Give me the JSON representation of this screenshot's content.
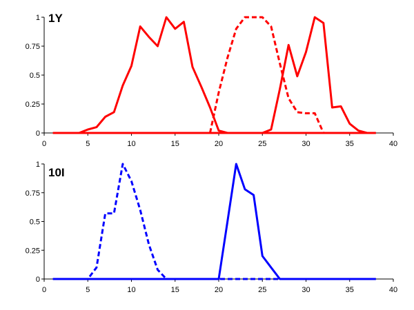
{
  "chart_data": [
    {
      "type": "line",
      "title": "1Y",
      "xlim": [
        0,
        40
      ],
      "ylim": [
        0,
        1
      ],
      "x_ticks": [
        0,
        5,
        10,
        15,
        20,
        25,
        30,
        35,
        40
      ],
      "y_ticks": [
        "0",
        "0.25",
        "0.5",
        "0.75",
        "1"
      ],
      "y_tick_values": [
        0,
        0.25,
        0.5,
        0.75,
        1
      ],
      "grid": false,
      "legend": "none",
      "color": "#ff0000",
      "series": [
        {
          "style": "solid",
          "x": [
            1,
            4,
            5,
            6,
            7,
            8,
            9,
            10,
            11,
            12,
            13,
            14,
            15,
            16,
            17,
            18,
            19,
            20,
            21,
            22,
            23,
            24,
            25,
            26,
            27,
            28,
            29,
            30,
            31,
            32,
            33,
            34,
            35,
            36,
            37,
            38
          ],
          "y": [
            0,
            0,
            0.03,
            0.05,
            0.14,
            0.18,
            0.41,
            0.58,
            0.92,
            0.83,
            0.75,
            1.0,
            0.9,
            0.96,
            0.57,
            0.4,
            0.22,
            0.02,
            0,
            0,
            0,
            0,
            0,
            0.03,
            0.38,
            0.76,
            0.49,
            0.7,
            1.0,
            0.95,
            0.22,
            0.23,
            0.08,
            0.02,
            0,
            0
          ]
        },
        {
          "style": "solid",
          "x": [
            1,
            38
          ],
          "y": [
            0,
            0
          ]
        },
        {
          "style": "dashed",
          "x": [
            19,
            20,
            21,
            22,
            23,
            24,
            25,
            26,
            27,
            28,
            29,
            30,
            31,
            32
          ],
          "y": [
            0,
            0.35,
            0.65,
            0.9,
            1.0,
            1.0,
            1.0,
            0.92,
            0.6,
            0.3,
            0.18,
            0.17,
            0.17,
            0
          ]
        }
      ]
    },
    {
      "type": "line",
      "title": "10I",
      "xlim": [
        0,
        40
      ],
      "ylim": [
        0,
        1
      ],
      "x_ticks": [
        0,
        5,
        10,
        15,
        20,
        25,
        30,
        35,
        40
      ],
      "y_ticks": [
        "0",
        "0.25",
        "0.5",
        "0.75",
        "1"
      ],
      "y_tick_values": [
        0,
        0.25,
        0.5,
        0.75,
        1
      ],
      "grid": false,
      "legend": "none",
      "color": "#0000ff",
      "series": [
        {
          "style": "dashed",
          "x": [
            1,
            5,
            6,
            7,
            8,
            9,
            10,
            11,
            12,
            13,
            14,
            20,
            38
          ],
          "y": [
            0,
            0,
            0.1,
            0.57,
            0.57,
            1.0,
            0.85,
            0.6,
            0.3,
            0.08,
            0,
            0,
            0
          ]
        },
        {
          "style": "solid",
          "x": [
            1,
            20,
            21,
            22,
            23,
            24,
            25,
            26,
            27,
            38
          ],
          "y": [
            0,
            0,
            0.5,
            1.0,
            0.78,
            0.73,
            0.2,
            0.1,
            0,
            0
          ]
        }
      ]
    }
  ]
}
